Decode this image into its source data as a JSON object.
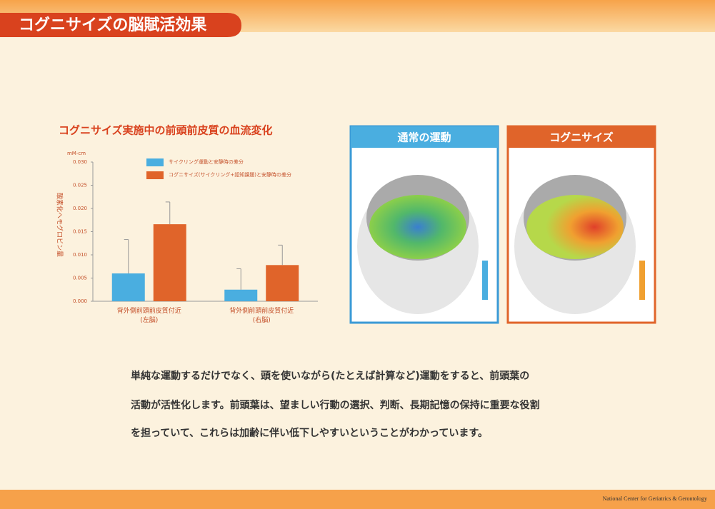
{
  "header": {
    "title": "コグニサイズの脳賦活効果"
  },
  "chart_data": {
    "type": "bar",
    "title": "コグニサイズ実施中の前頭前皮質の血流変化",
    "y_unit": "mM-cm",
    "y_label": "酸素化ヘモグロビン量",
    "categories": [
      "背外側前頭前皮質付近\n(左脳)",
      "背外側前頭前皮質付近\n(右脳)"
    ],
    "series": [
      {
        "name": "サイクリング運動と安静時の差分",
        "color": "#4aaee0",
        "values": [
          0.006,
          0.0025
        ],
        "errors": [
          0.0073,
          0.0045
        ]
      },
      {
        "name": "コグニサイズ(サイクリング+認知課題)と安静時の差分",
        "color": "#e0642a",
        "values": [
          0.0166,
          0.0078
        ],
        "errors": [
          0.0048,
          0.0043
        ]
      }
    ],
    "ylim": [
      0,
      0.03
    ],
    "yticks": [
      {
        "value": 0,
        "label": "0.000"
      },
      0.005,
      {
        "value": 0.01,
        "label": "0.010"
      },
      0.015,
      {
        "value": 0.02,
        "label": "0.020"
      },
      0.025,
      {
        "value": 0.03,
        "label": "0.030"
      }
    ],
    "grid": false
  },
  "panels": [
    {
      "label": "通常の運動"
    },
    {
      "label": "コグニサイズ"
    }
  ],
  "body": {
    "lines": [
      "単純な運動するだけでなく、頭を使いながら(たとえば計算など)運動をすると、前頭葉の",
      "活動が活性化します。前頭葉は、望ましい行動の選択、判断、長期記憶の保持に重要な役割",
      "を担っていて、これらは加齢に伴い低下しやすいということがわかっています。"
    ]
  },
  "footer": {
    "text": "National Center for Geriatrics & Gerontology"
  }
}
